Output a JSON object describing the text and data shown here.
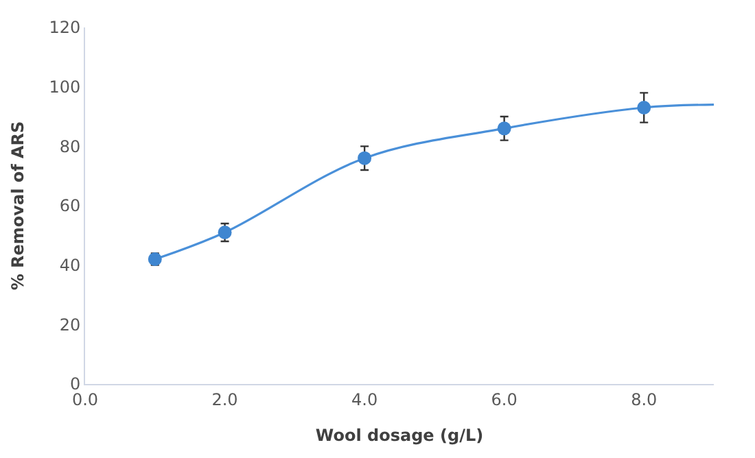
{
  "chart_data": {
    "type": "scatter",
    "xlabel": "Wool dosage (g/L)",
    "ylabel": "% Removal of ARS",
    "xlim": [
      0,
      9
    ],
    "xticks": [
      {
        "value": 0,
        "label": "0.0"
      },
      {
        "value": 2,
        "label": "2.0"
      },
      {
        "value": 4,
        "label": "4.0"
      },
      {
        "value": 6,
        "label": "6.0"
      },
      {
        "value": 8,
        "label": "8.0"
      }
    ],
    "ylim": [
      0,
      120
    ],
    "yticks": [
      0,
      20,
      40,
      60,
      80,
      100,
      120
    ],
    "series": [
      {
        "type": "line",
        "color": "#4a90d9",
        "x": [
          1,
          2,
          4,
          6,
          8,
          9
        ],
        "values": [
          42,
          51,
          76,
          86,
          93,
          94
        ]
      },
      {
        "color": "#3f86d0",
        "marker": "circle",
        "x": [
          1,
          2,
          4,
          6,
          8
        ],
        "values": [
          42,
          51,
          76,
          86,
          93
        ],
        "errors": [
          2,
          3,
          4,
          4,
          5
        ]
      }
    ]
  }
}
